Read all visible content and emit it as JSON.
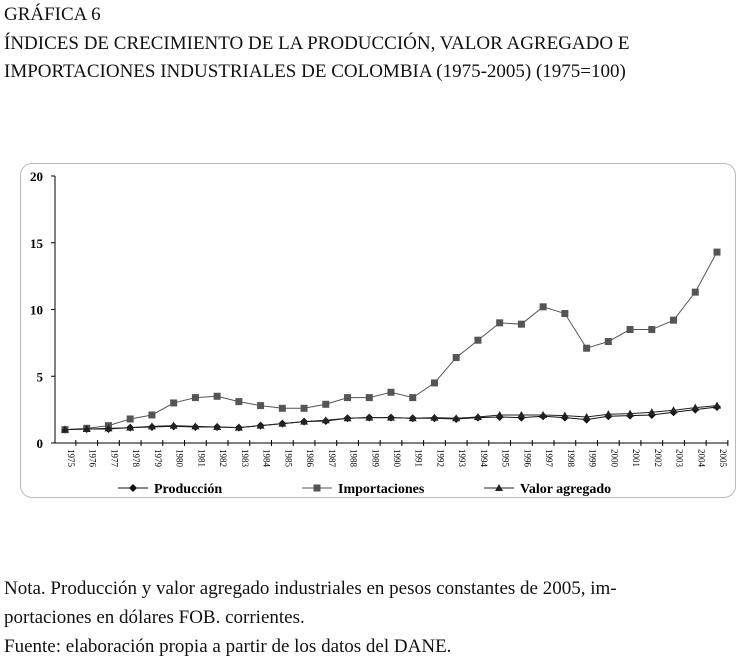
{
  "heading": {
    "label": "GRÁFICA 6",
    "line1": "ÍNDICES DE CRECIMIENTO DE LA PRODUCCIÓN, VALOR AGREGADO E",
    "line2": "IMPORTACIONES INDUSTRIALES DE COLOMBIA (1975-2005) (1975=100)"
  },
  "chart_data": {
    "type": "line",
    "title": "ÍNDICES DE CRECIMIENTO DE LA PRODUCCIÓN, VALOR AGREGADO E IMPORTACIONES INDUSTRIALES DE COLOMBIA (1975-2005) (1975=100)",
    "xlabel": "",
    "ylabel": "",
    "ylim": [
      0,
      20
    ],
    "yticks": [
      "0",
      "5",
      "10",
      "15",
      "20"
    ],
    "categories": [
      "1975",
      "1976",
      "1977",
      "1978",
      "1979",
      "1980",
      "1981",
      "1982",
      "1983",
      "1984",
      "1985",
      "1986",
      "1987",
      "1988",
      "1989",
      "1990",
      "1991",
      "1992",
      "1993",
      "1994",
      "1995",
      "1996",
      "1997",
      "1998",
      "1999",
      "2000",
      "2001",
      "2002",
      "2003",
      "2004",
      "2005"
    ],
    "legend_position": "bottom",
    "series": [
      {
        "name": "Producción",
        "marker": "diamond",
        "color": "#111111",
        "values": [
          1.0,
          1.05,
          1.05,
          1.15,
          1.2,
          1.25,
          1.2,
          1.2,
          1.15,
          1.3,
          1.45,
          1.6,
          1.65,
          1.85,
          1.9,
          1.9,
          1.85,
          1.85,
          1.8,
          1.9,
          1.95,
          1.9,
          2.0,
          1.9,
          1.75,
          2.0,
          2.05,
          2.1,
          2.3,
          2.5,
          2.7
        ]
      },
      {
        "name": "Importaciones",
        "marker": "square",
        "color": "#555555",
        "values": [
          1.0,
          1.1,
          1.3,
          1.8,
          2.1,
          3.0,
          3.4,
          3.5,
          3.1,
          2.8,
          2.6,
          2.6,
          2.9,
          3.4,
          3.4,
          3.8,
          3.4,
          4.5,
          6.4,
          7.7,
          9.0,
          8.9,
          10.2,
          9.7,
          7.1,
          7.6,
          8.5,
          8.5,
          9.2,
          11.3,
          14.3
        ]
      },
      {
        "name": "Valor agregado",
        "marker": "triangle",
        "color": "#222222",
        "values": [
          1.0,
          1.05,
          1.1,
          1.15,
          1.25,
          1.3,
          1.25,
          1.2,
          1.15,
          1.3,
          1.45,
          1.6,
          1.7,
          1.85,
          1.9,
          1.9,
          1.85,
          1.9,
          1.85,
          1.95,
          2.1,
          2.1,
          2.1,
          2.05,
          1.95,
          2.15,
          2.2,
          2.3,
          2.45,
          2.65,
          2.8
        ]
      }
    ]
  },
  "notes": {
    "line1": "Nota. Producción y valor agregado industriales en pesos constantes de 2005, im-",
    "line2": "portaciones en dólares FOB. corrientes.",
    "line3": "Fuente: elaboración propia a partir de los datos del DANE."
  }
}
